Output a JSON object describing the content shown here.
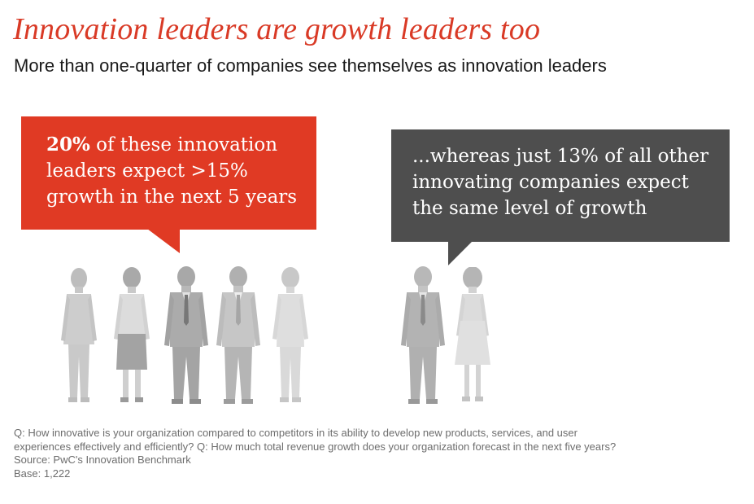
{
  "title": "Innovation leaders are growth leaders too",
  "subtitle": "More than one-quarter of companies see themselves as innovation leaders",
  "leaders_callout": {
    "highlight": "20%",
    "line1_rest": " of these innovation",
    "line2": "leaders expect >15%",
    "line3": "growth in the next 5 years",
    "color": "#e03a24"
  },
  "others_callout": {
    "line1": "...whereas just 13% of all other",
    "line2": "innovating companies expect",
    "line3": "the same level of growth",
    "color": "#4e4e4e"
  },
  "people": {
    "leaders_group": [
      "woman",
      "woman",
      "man",
      "man",
      "woman"
    ],
    "others_group": [
      "man",
      "woman"
    ]
  },
  "notes": {
    "question_line1": "Q: How innovative is your organization compared to competitors in its ability to develop new products, services, and user",
    "question_line2": "experiences effectively and efficiently? Q: How much total revenue growth does your organization forecast in the next five years?",
    "source": "Source: PwC's Innovation Benchmark",
    "base": "Base: 1,222"
  }
}
